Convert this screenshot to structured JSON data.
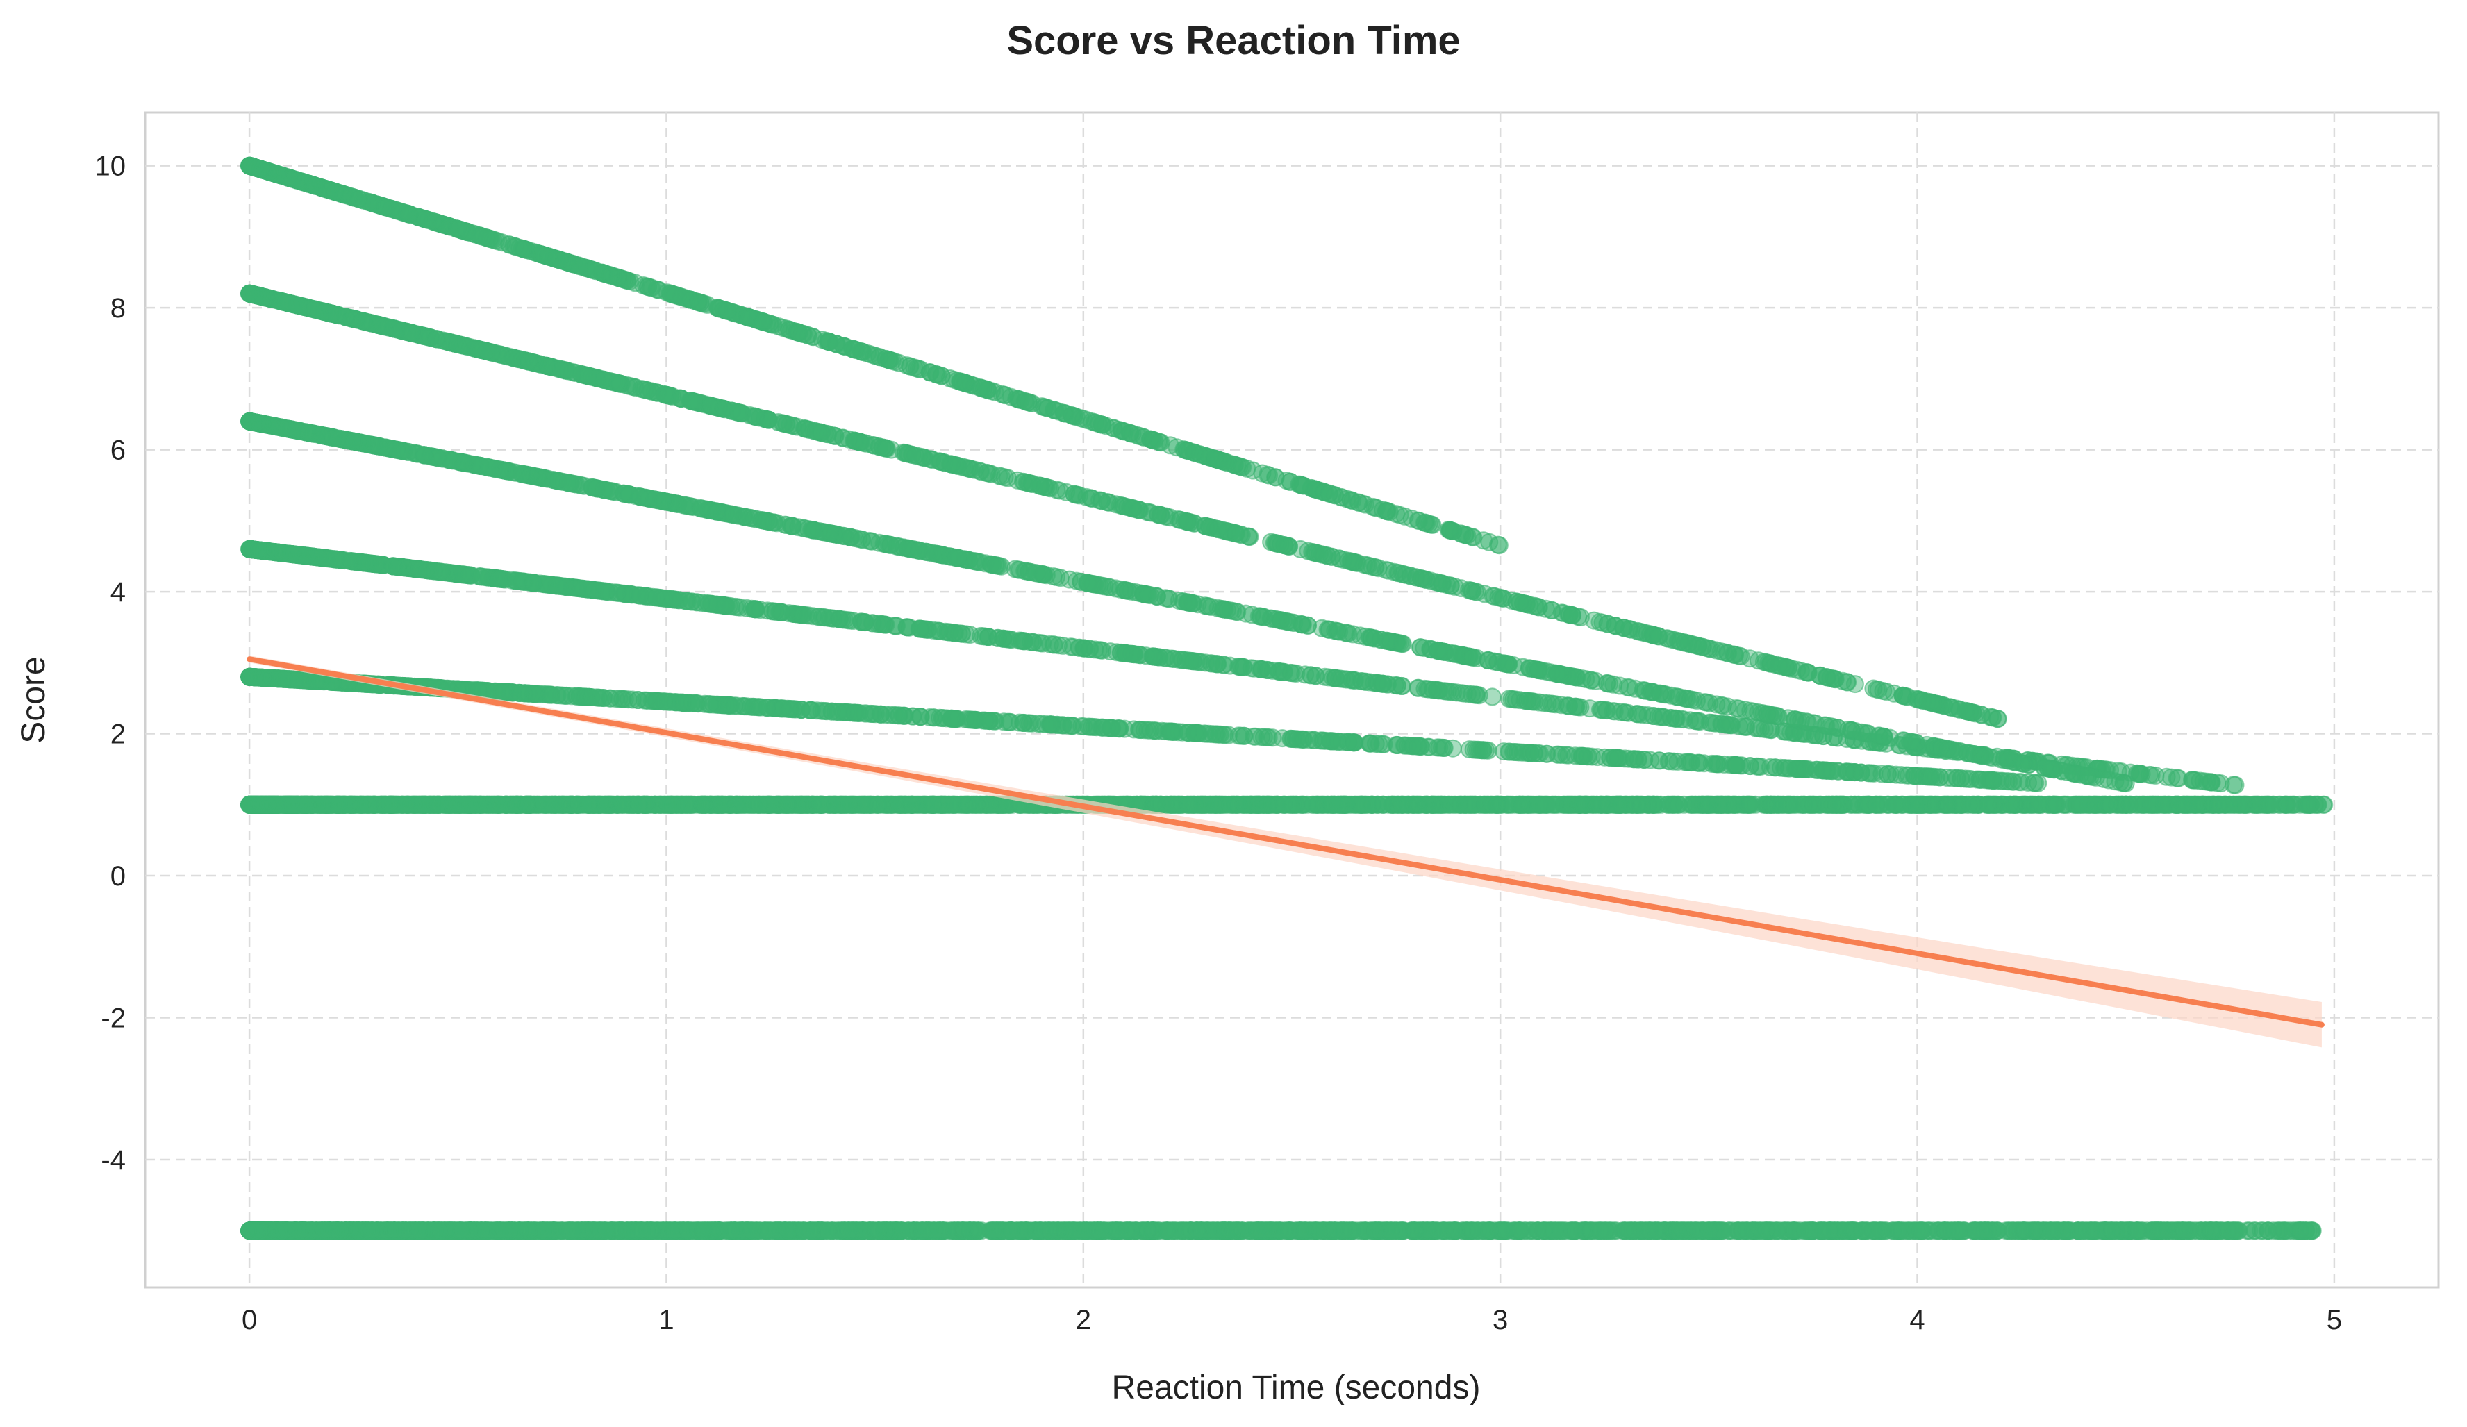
{
  "chart_data": {
    "type": "scatter",
    "title": "Score vs Reaction Time",
    "xlabel": "Reaction Time (seconds)",
    "ylabel": "Score",
    "xlim": [
      -0.25,
      5.25
    ],
    "ylim": [
      -5.8,
      10.75
    ],
    "x_ticks": [
      0,
      1,
      2,
      3,
      4,
      5
    ],
    "y_ticks": [
      -4,
      -2,
      0,
      2,
      4,
      6,
      8,
      10
    ],
    "grid": true,
    "grid_style": "dashed",
    "point_color": "#3cb371",
    "point_alpha": 0.45,
    "line_color": "#f77f50",
    "ci_color": "#fcd5c6",
    "series": [
      {
        "x_range": [
          0,
          4.98
        ],
        "y": 1.0,
        "points": 2500
      },
      {
        "x_range": [
          0,
          4.95
        ],
        "y": -5.0,
        "points": 2500
      },
      {
        "x_range": [
          0,
          4.3
        ],
        "y_start": 2.8,
        "y_end": 1.3,
        "points": 1000
      },
      {
        "x_range": [
          0,
          4.8
        ],
        "y_start": 4.6,
        "y_end": 1.25,
        "points": 1000
      },
      {
        "x_range": [
          0,
          4.5
        ],
        "y_start": 6.4,
        "y_end": 1.3,
        "points": 1000
      },
      {
        "x_range": [
          0,
          4.2
        ],
        "y_start": 8.2,
        "y_end": 2.2,
        "points": 1000
      },
      {
        "x_range": [
          0,
          3.0
        ],
        "y_start": 10.0,
        "y_end": 4.65,
        "points": 800
      }
    ],
    "regression": {
      "x": [
        0,
        4.97
      ],
      "y": [
        3.05,
        -2.1
      ],
      "ci_halfwidth_at_end": 0.32
    }
  }
}
